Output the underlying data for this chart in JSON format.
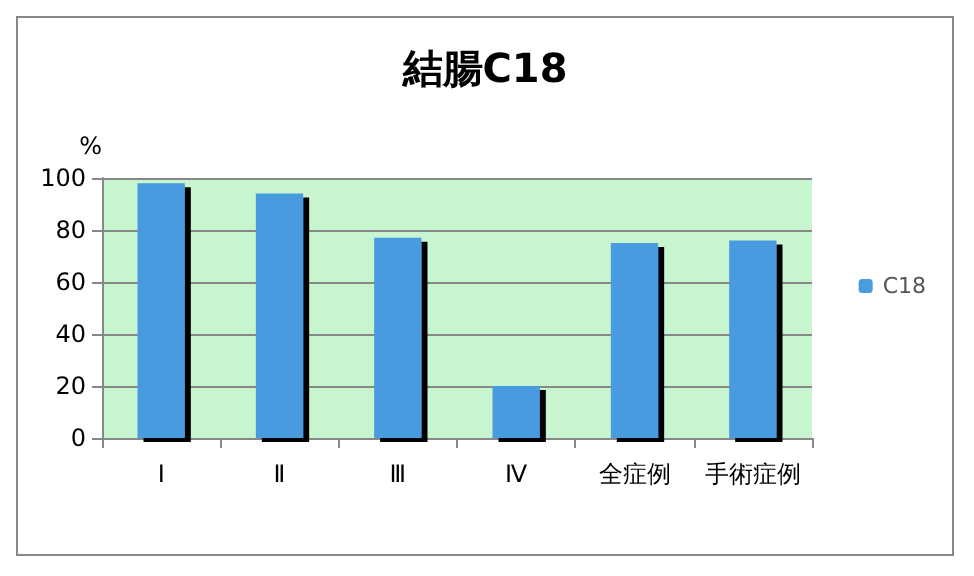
{
  "chart_data": {
    "type": "bar",
    "title": "結腸C18",
    "ylabel": "%",
    "categories": [
      "Ⅰ",
      "Ⅱ",
      "Ⅲ",
      "Ⅳ",
      "全症例",
      "手術症例"
    ],
    "series": [
      {
        "name": "C18",
        "color": "#4a9be0",
        "values": [
          98,
          94,
          77,
          20,
          75,
          76
        ]
      }
    ],
    "ylim": [
      0,
      100
    ],
    "yticks": [
      0,
      20,
      40,
      60,
      80,
      100
    ],
    "grid": "y",
    "legend": "right"
  }
}
